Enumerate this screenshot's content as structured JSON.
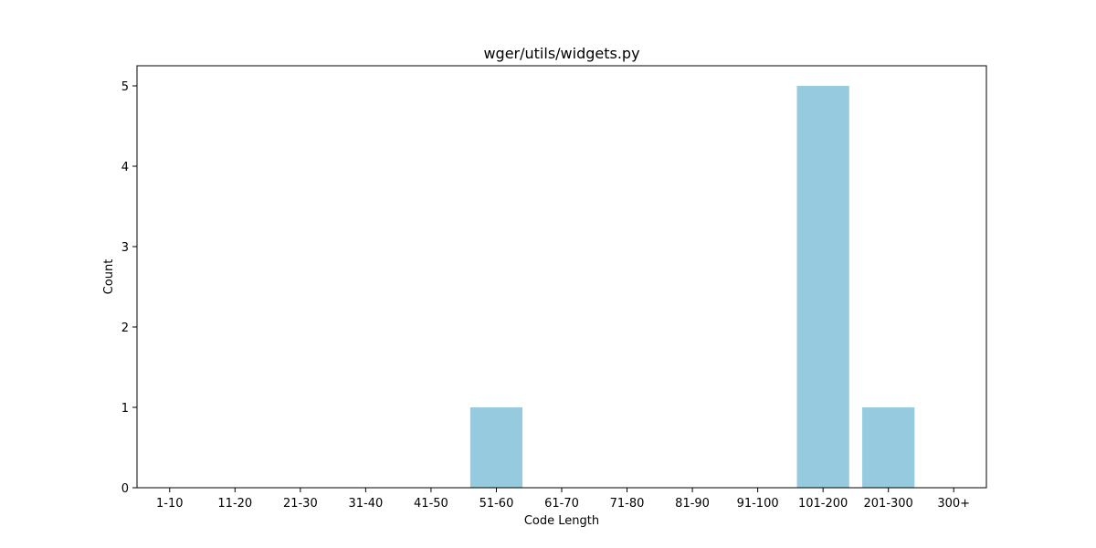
{
  "chart_data": {
    "type": "bar",
    "title": "wger/utils/widgets.py",
    "xlabel": "Code Length",
    "ylabel": "Count",
    "categories": [
      "1-10",
      "11-20",
      "21-30",
      "31-40",
      "41-50",
      "51-60",
      "61-70",
      "71-80",
      "81-90",
      "91-100",
      "101-200",
      "201-300",
      "300+"
    ],
    "values": [
      0,
      0,
      0,
      0,
      0,
      1,
      0,
      0,
      0,
      0,
      5,
      1,
      0
    ],
    "ylim": [
      0,
      5.25
    ],
    "yticks": [
      0,
      1,
      2,
      3,
      4,
      5
    ],
    "grid": false,
    "legend": "none",
    "bar_color": "#96cade"
  }
}
